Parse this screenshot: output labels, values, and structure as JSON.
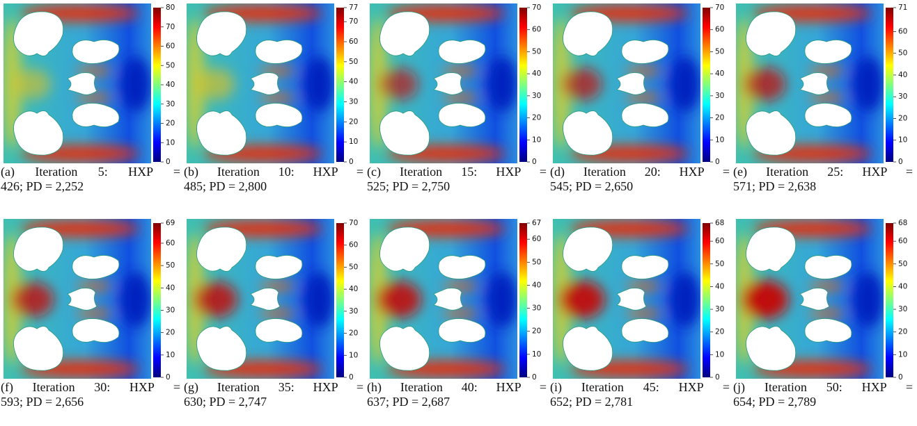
{
  "panels": [
    {
      "caption": [
        "(a) Iteration 5: HXP =",
        "426; PD = 2,252"
      ],
      "colorbar": {
        "range": [
          0,
          80
        ],
        "ticks": [
          0,
          10,
          20,
          30,
          40,
          50,
          60,
          70,
          80
        ]
      }
    },
    {
      "caption": [
        "(b) Iteration 10: HXP =",
        "485; PD = 2,800"
      ],
      "colorbar": {
        "range": [
          0,
          77
        ],
        "ticks": [
          0,
          10,
          20,
          30,
          40,
          50,
          60,
          70,
          77
        ]
      }
    },
    {
      "caption": [
        "(c) Iteration 15: HXP =",
        "525; PD = 2,750"
      ],
      "colorbar": {
        "range": [
          0,
          70
        ],
        "ticks": [
          0,
          10,
          20,
          30,
          40,
          50,
          60,
          70
        ]
      }
    },
    {
      "caption": [
        "(d) Iteration 20: HXP =",
        "545; PD = 2,650"
      ],
      "colorbar": {
        "range": [
          0,
          70
        ],
        "ticks": [
          0,
          10,
          20,
          30,
          40,
          50,
          60,
          70
        ]
      }
    },
    {
      "caption": [
        "(e) Iteration 25: HXP =",
        "571; PD = 2,638"
      ],
      "colorbar": {
        "range": [
          0,
          71
        ],
        "ticks": [
          0,
          10,
          20,
          30,
          40,
          50,
          60,
          71
        ]
      }
    },
    {
      "caption": [
        "(f) Iteration 30: HXP =",
        "593; PD = 2,656"
      ],
      "colorbar": {
        "range": [
          0,
          69
        ],
        "ticks": [
          0,
          10,
          20,
          30,
          40,
          50,
          60,
          69
        ]
      }
    },
    {
      "caption": [
        "(g) Iteration 35: HXP =",
        "630; PD = 2,747"
      ],
      "colorbar": {
        "range": [
          0,
          70
        ],
        "ticks": [
          0,
          10,
          20,
          30,
          40,
          50,
          60,
          70
        ]
      }
    },
    {
      "caption": [
        "(h) Iteration 40: HXP =",
        "637; PD = 2,687"
      ],
      "colorbar": {
        "range": [
          0,
          67
        ],
        "ticks": [
          0,
          10,
          20,
          30,
          40,
          50,
          60,
          67
        ]
      }
    },
    {
      "caption": [
        "(i) Iteration 45: HXP =",
        "652; PD = 2,781"
      ],
      "colorbar": {
        "range": [
          0,
          68
        ],
        "ticks": [
          0,
          10,
          20,
          30,
          40,
          50,
          60,
          68
        ]
      }
    },
    {
      "caption": [
        "(j) Iteration 50: HXP =",
        "654; PD = 2,789"
      ],
      "colorbar": {
        "range": [
          0,
          68
        ],
        "ticks": [
          0,
          10,
          20,
          30,
          40,
          50,
          60,
          68
        ]
      }
    }
  ]
}
